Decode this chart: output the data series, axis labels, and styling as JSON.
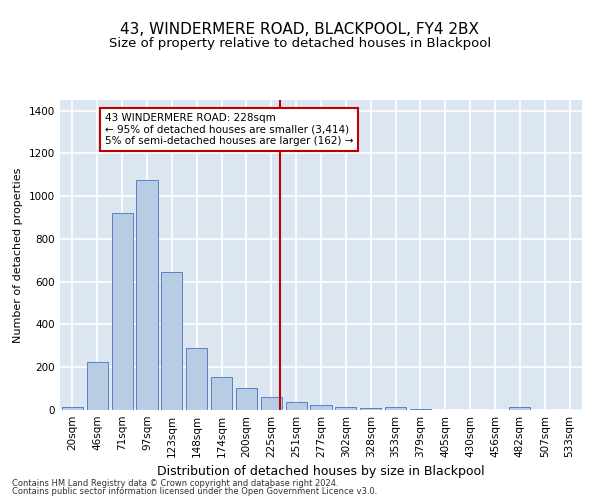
{
  "title": "43, WINDERMERE ROAD, BLACKPOOL, FY4 2BX",
  "subtitle": "Size of property relative to detached houses in Blackpool",
  "xlabel": "Distribution of detached houses by size in Blackpool",
  "ylabel": "Number of detached properties",
  "footnote1": "Contains HM Land Registry data © Crown copyright and database right 2024.",
  "footnote2": "Contains public sector information licensed under the Open Government Licence v3.0.",
  "categories": [
    "20sqm",
    "46sqm",
    "71sqm",
    "97sqm",
    "123sqm",
    "148sqm",
    "174sqm",
    "200sqm",
    "225sqm",
    "251sqm",
    "277sqm",
    "302sqm",
    "328sqm",
    "353sqm",
    "379sqm",
    "405sqm",
    "430sqm",
    "456sqm",
    "482sqm",
    "507sqm",
    "533sqm"
  ],
  "values": [
    15,
    225,
    920,
    1075,
    645,
    290,
    155,
    105,
    60,
    38,
    25,
    15,
    10,
    12,
    5,
    0,
    0,
    0,
    15,
    0,
    0
  ],
  "bar_color": "#b8cce4",
  "bar_edge_color": "#4472c4",
  "background_color": "#dce6f1",
  "grid_color": "#ffffff",
  "ylim": [
    0,
    1450
  ],
  "yticks": [
    0,
    200,
    400,
    600,
    800,
    1000,
    1200,
    1400
  ],
  "property_line_x": 8.36,
  "property_line_color": "#c00000",
  "annotation_text": "43 WINDERMERE ROAD: 228sqm\n← 95% of detached houses are smaller (3,414)\n5% of semi-detached houses are larger (162) →",
  "annotation_box_color": "#c00000",
  "title_fontsize": 11,
  "subtitle_fontsize": 9.5,
  "xlabel_fontsize": 9,
  "ylabel_fontsize": 8,
  "tick_fontsize": 7.5,
  "annotation_fontsize": 7.5
}
